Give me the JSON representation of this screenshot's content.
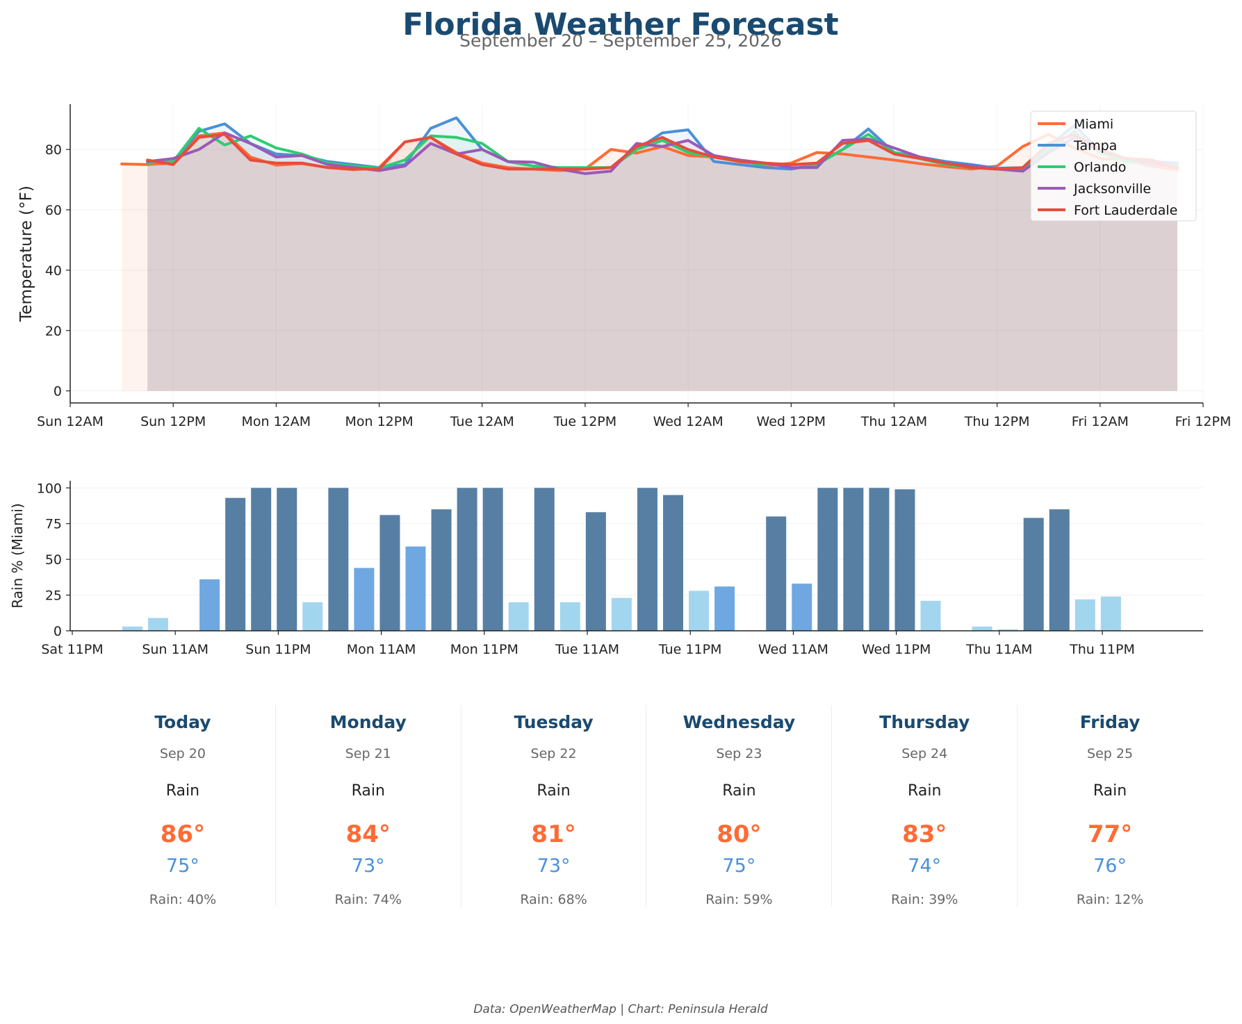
{
  "header": {
    "title": "Florida Weather Forecast",
    "subtitle": "September 20 – September 25, 2026"
  },
  "footer": "Data: OpenWeatherMap | Chart: Peninsula Herald",
  "colors": {
    "Miami": "#ff6b35",
    "Tampa": "#4a90d9",
    "Orlando": "#2ecc71",
    "Jacksonville": "#9b59b6",
    "Fort Lauderdale": "#e74c3c",
    "rain_high": "#577fa3",
    "rain_mid": "#6fa8e0",
    "rain_low": "#a2d6ee"
  },
  "chart_data": [
    {
      "type": "line",
      "ylabel": "Temperature (°F)",
      "xlabel": "",
      "ylim": [
        -4,
        95
      ],
      "yticks": [
        0,
        20,
        40,
        60,
        80
      ],
      "x_unit": "hours from Sun 12AM Sep 20",
      "xlim": [
        0,
        132
      ],
      "xtick_hours": [
        0,
        12,
        24,
        36,
        48,
        60,
        72,
        84,
        96,
        108,
        120,
        132
      ],
      "xtick_labels": [
        "Sun 12AM",
        "Sun 12PM",
        "Mon 12AM",
        "Mon 12PM",
        "Tue 12AM",
        "Tue 12PM",
        "Wed 12AM",
        "Wed 12PM",
        "Thu 12AM",
        "Thu 12PM",
        "Fri 12AM",
        "Fri 12PM"
      ],
      "grid": true,
      "legend_position": "top-right",
      "series": [
        {
          "name": "Miami",
          "x": [
            6,
            9,
            12,
            15,
            18,
            21,
            24,
            27,
            30,
            33,
            36,
            39,
            42,
            45,
            48,
            51,
            54,
            57,
            60,
            63,
            66,
            69,
            72,
            75,
            78,
            81,
            84,
            87,
            90,
            93,
            96,
            99,
            102,
            105,
            108,
            111,
            114,
            117,
            120,
            123,
            126,
            129
          ],
          "values": [
            75.2,
            75.0,
            75.5,
            84.5,
            85.5,
            77.5,
            74.8,
            75.3,
            74.0,
            73.3,
            74.0,
            82.5,
            84.0,
            79.0,
            75.5,
            74.0,
            73.5,
            73.0,
            73.5,
            80.0,
            78.8,
            81.0,
            78.0,
            77.5,
            76.5,
            74.5,
            75.5,
            79.0,
            78.5,
            77.5,
            76.5,
            75.3,
            74.3,
            73.5,
            74.5,
            81.0,
            85.0,
            80.5,
            77.0,
            76.5,
            74.5,
            73.3
          ]
        },
        {
          "name": "Tampa",
          "x": [
            9,
            12,
            15,
            18,
            21,
            24,
            27,
            30,
            33,
            36,
            39,
            42,
            45,
            48,
            51,
            54,
            57,
            60,
            63,
            66,
            69,
            72,
            75,
            78,
            81,
            84,
            87,
            90,
            93,
            96,
            99,
            102,
            105,
            108,
            111,
            114,
            117,
            120,
            123,
            126,
            129
          ],
          "values": [
            75.5,
            76.0,
            86.0,
            88.5,
            82.0,
            78.5,
            78.0,
            76.0,
            75.0,
            74.0,
            75.0,
            87.0,
            90.5,
            80.0,
            76.0,
            74.5,
            74.0,
            73.5,
            74.0,
            80.0,
            85.5,
            86.5,
            76.0,
            75.0,
            74.0,
            73.5,
            75.0,
            80.0,
            86.8,
            79.0,
            77.5,
            76.0,
            75.0,
            73.8,
            74.0,
            81.0,
            88.0,
            79.5,
            77.0,
            76.0,
            75.5
          ]
        },
        {
          "name": "Orlando",
          "x": [
            9,
            12,
            15,
            18,
            21,
            24,
            27,
            30,
            33,
            36,
            39,
            42,
            45,
            48,
            51,
            54,
            57,
            60,
            63,
            66,
            69,
            72,
            75,
            78,
            81,
            84,
            87,
            90,
            93,
            96,
            99,
            102,
            105,
            108,
            111,
            114,
            117,
            120,
            123,
            126,
            129
          ],
          "values": [
            75.5,
            76.0,
            87.0,
            81.5,
            84.5,
            80.5,
            78.5,
            75.5,
            74.5,
            73.8,
            76.5,
            84.5,
            84.0,
            82.0,
            76.0,
            74.5,
            74.0,
            74.0,
            74.0,
            80.0,
            83.0,
            79.0,
            77.5,
            76.0,
            75.0,
            75.0,
            75.0,
            80.0,
            85.0,
            79.0,
            77.0,
            75.0,
            74.0,
            73.5,
            73.5,
            80.0,
            86.0,
            79.0,
            76.0,
            75.5,
            74.5
          ]
        },
        {
          "name": "Jacksonville",
          "x": [
            9,
            12,
            15,
            18,
            21,
            24,
            27,
            30,
            33,
            36,
            39,
            42,
            45,
            48,
            51,
            54,
            57,
            60,
            63,
            66,
            69,
            72,
            75,
            78,
            81,
            84,
            87,
            90,
            93,
            96,
            99,
            102,
            105,
            108,
            111,
            114,
            117,
            120,
            123,
            126,
            129
          ],
          "values": [
            76.0,
            77.0,
            80.0,
            85.5,
            82.0,
            77.5,
            78.0,
            75.0,
            74.0,
            73.0,
            74.5,
            82.0,
            78.5,
            80.0,
            76.0,
            75.8,
            73.5,
            72.0,
            72.8,
            82.0,
            81.0,
            83.0,
            78.0,
            76.5,
            75.5,
            74.0,
            74.0,
            83.0,
            83.5,
            80.5,
            77.5,
            75.5,
            74.5,
            73.5,
            72.8,
            79.0,
            84.0,
            79.5,
            77.0,
            75.5,
            74.0
          ]
        },
        {
          "name": "Fort Lauderdale",
          "x": [
            9,
            12,
            15,
            18,
            21,
            24,
            27,
            30,
            33,
            36,
            39,
            42,
            45,
            48,
            51,
            54,
            57,
            60,
            63,
            66,
            69,
            72,
            75,
            78,
            81,
            84,
            87,
            90,
            93,
            96,
            99,
            102,
            105,
            108,
            111,
            114,
            117,
            120,
            123,
            126,
            129
          ],
          "values": [
            76.5,
            75.0,
            84.0,
            85.0,
            76.5,
            75.5,
            75.5,
            74.0,
            73.5,
            73.5,
            82.5,
            84.0,
            78.5,
            75.0,
            73.5,
            73.5,
            73.5,
            73.5,
            74.0,
            81.0,
            84.0,
            80.0,
            77.5,
            76.0,
            75.5,
            75.0,
            75.5,
            82.0,
            83.0,
            78.5,
            77.0,
            75.5,
            74.0,
            73.5,
            74.0,
            82.0,
            85.0,
            80.0,
            77.0,
            76.5,
            74.0
          ]
        }
      ]
    },
    {
      "type": "bar",
      "ylabel": "Rain % (Miami)",
      "xlabel": "",
      "ylim": [
        0,
        105
      ],
      "yticks": [
        0,
        25,
        50,
        75,
        100
      ],
      "x_unit": "hours from Sat 11PM Sep 19",
      "xlim": [
        0,
        131
      ],
      "xtick_hours": [
        0,
        12,
        24,
        36,
        48,
        60,
        72,
        84,
        96,
        108,
        120
      ],
      "xtick_labels": [
        "Sat 11PM",
        "Sun 11AM",
        "Sun 11PM",
        "Mon 11AM",
        "Mon 11PM",
        "Tue 11AM",
        "Tue 11PM",
        "Wed 11AM",
        "Wed 11PM",
        "Thu 11AM",
        "Thu 11PM"
      ],
      "x": [
        7,
        10,
        13,
        16,
        19,
        22,
        25,
        28,
        31,
        34,
        37,
        40,
        43,
        46,
        49,
        52,
        55,
        58,
        61,
        64,
        67,
        70,
        73,
        76,
        79,
        82,
        85,
        88,
        91,
        94,
        97,
        100,
        103,
        106,
        109,
        112,
        115,
        118,
        121,
        124,
        127
      ],
      "values": [
        3,
        9,
        0,
        36,
        93,
        100,
        100,
        20,
        100,
        44,
        81,
        59,
        85,
        100,
        100,
        20,
        100,
        20,
        83,
        23,
        100,
        95,
        28,
        31,
        0,
        80,
        33,
        100,
        100,
        100,
        99,
        21,
        0,
        3,
        1,
        79,
        85,
        22,
        24,
        0,
        0
      ]
    }
  ],
  "forecast": [
    {
      "day": "Today",
      "date": "Sep 20",
      "cond": "Rain",
      "hi": "86°",
      "lo": "75°",
      "rain": "Rain: 40%"
    },
    {
      "day": "Monday",
      "date": "Sep 21",
      "cond": "Rain",
      "hi": "84°",
      "lo": "73°",
      "rain": "Rain: 74%"
    },
    {
      "day": "Tuesday",
      "date": "Sep 22",
      "cond": "Rain",
      "hi": "81°",
      "lo": "73°",
      "rain": "Rain: 68%"
    },
    {
      "day": "Wednesday",
      "date": "Sep 23",
      "cond": "Rain",
      "hi": "80°",
      "lo": "75°",
      "rain": "Rain: 59%"
    },
    {
      "day": "Thursday",
      "date": "Sep 24",
      "cond": "Rain",
      "hi": "83°",
      "lo": "74°",
      "rain": "Rain: 39%"
    },
    {
      "day": "Friday",
      "date": "Sep 25",
      "cond": "Rain",
      "hi": "77°",
      "lo": "76°",
      "rain": "Rain: 12%"
    }
  ]
}
